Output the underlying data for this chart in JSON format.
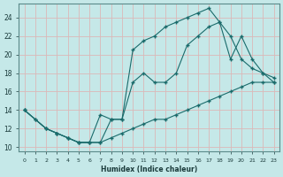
{
  "xlabel": "Humidex (Indice chaleur)",
  "background_color": "#c5e8e8",
  "grid_color": "#dbb8b8",
  "line_color": "#1a6b6b",
  "xlim": [
    -0.5,
    23.5
  ],
  "ylim": [
    9.5,
    25.5
  ],
  "xticks": [
    0,
    1,
    2,
    3,
    4,
    5,
    6,
    7,
    8,
    9,
    10,
    11,
    12,
    13,
    14,
    15,
    16,
    17,
    18,
    19,
    20,
    21,
    22,
    23
  ],
  "yticks": [
    10,
    12,
    14,
    16,
    18,
    20,
    22,
    24
  ],
  "series1_x": [
    0,
    1,
    2,
    3,
    4,
    5,
    6,
    7,
    8,
    9,
    10,
    11,
    12,
    13,
    14,
    15,
    16,
    17,
    18,
    19,
    20,
    21,
    22,
    23
  ],
  "series1_y": [
    14,
    13,
    12,
    11.5,
    11,
    10.5,
    10.5,
    10.5,
    11,
    11.5,
    12,
    12.5,
    13,
    13,
    13.5,
    14,
    14.5,
    15,
    15.5,
    16,
    16.5,
    17,
    17,
    17
  ],
  "series2_x": [
    0,
    1,
    2,
    3,
    4,
    5,
    6,
    7,
    8,
    9,
    10,
    11,
    12,
    13,
    14,
    15,
    16,
    17,
    18,
    19,
    20,
    21,
    22,
    23
  ],
  "series2_y": [
    14,
    13,
    12,
    11.5,
    11,
    10.5,
    10.5,
    13.5,
    13,
    13,
    17,
    18,
    17,
    17,
    18,
    21,
    22,
    23,
    23.5,
    22,
    19.5,
    18.5,
    18,
    17.5
  ],
  "series3_x": [
    0,
    2,
    3,
    4,
    5,
    6,
    7,
    8,
    9,
    10,
    11,
    12,
    13,
    14,
    15,
    16,
    17,
    18,
    19,
    20,
    21,
    22,
    23
  ],
  "series3_y": [
    14,
    12,
    11.5,
    11,
    10.5,
    10.5,
    10.5,
    13,
    13,
    20.5,
    21.5,
    22,
    23,
    23.5,
    24,
    24.5,
    25,
    23.5,
    19.5,
    22,
    19.5,
    18,
    17
  ]
}
